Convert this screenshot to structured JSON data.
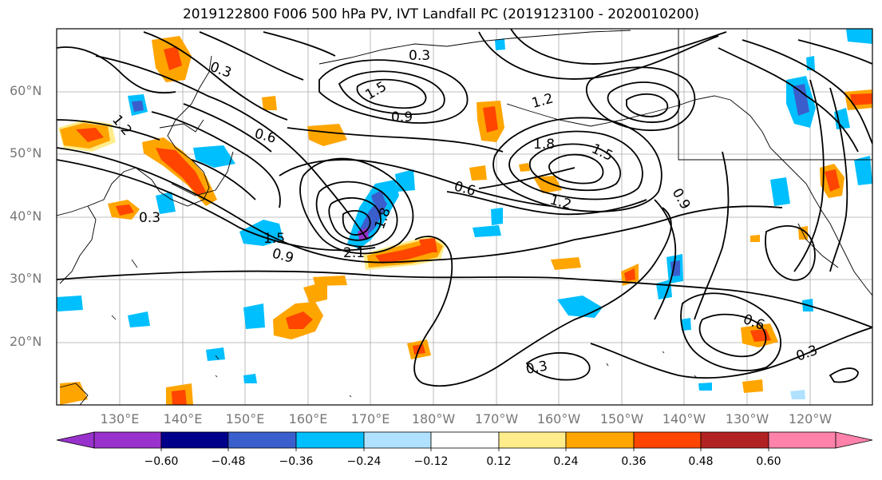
{
  "title": "2019122800 F006 500 hPa PV, IVT Landfall PC (2019123100 - 2020010200)",
  "lat_labels": [
    "60°N",
    "50°N",
    "40°N",
    "30°N",
    "20°N"
  ],
  "lon_labels": [
    "130°E",
    "140°E",
    "150°E",
    "160°E",
    "170°E",
    "180°W",
    "170°W",
    "160°W",
    "150°W",
    "140°W",
    "130°W",
    "120°W"
  ],
  "contour_labels": [
    "0.3",
    "0.3",
    "0.3",
    "0.3",
    "0.3",
    "0.6",
    "0.6",
    "0.6",
    "0.9",
    "0.9",
    "0.9",
    "1.2",
    "1.2",
    "1.2",
    "1.5",
    "1.5",
    "1.5",
    "1.8",
    "1.8",
    "2.1"
  ],
  "colorbar": {
    "colors": [
      "#9932cc",
      "#00008b",
      "#3a5fcd",
      "#00bfff",
      "#b0e2ff",
      "#ffffff",
      "#ffec8b",
      "#ffa500",
      "#ff4500",
      "#b22222",
      "#ff82ab"
    ],
    "tick_labels": [
      "−0.60",
      "−0.48",
      "−0.36",
      "−0.24",
      "−0.12",
      "0.12",
      "0.24",
      "0.36",
      "0.48",
      "0.60"
    ]
  }
}
